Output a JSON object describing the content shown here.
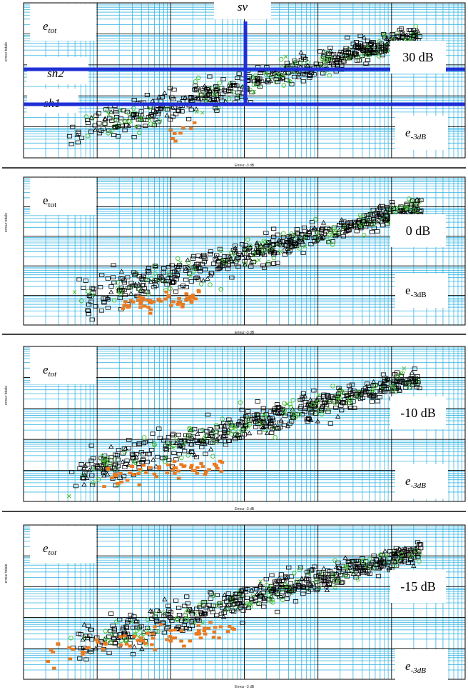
{
  "colors": {
    "major_grid": "#1aa7d9",
    "minor_grid": "#36b4e3",
    "threshold_lines": "#1f2fd6",
    "square_marker": "#000000",
    "triangle_marker": "#000000",
    "circle_marker": "#3fbf2f",
    "x_marker": "#3fbf2f",
    "filled_square_marker": "#e87a22"
  },
  "chart_data": [
    {
      "type": "scatter",
      "x_scale": "log",
      "y_scale": "log",
      "xlabel": "Erreur -3 dB",
      "ylabel": "erreur totale",
      "grid": true,
      "labels": {
        "corner_label": {
          "main": "e",
          "sub": "tot",
          "italic": true
        },
        "snr_label": "30 dB",
        "bottom_label": {
          "main": "e",
          "sub": "-3dB",
          "italic": true
        }
      },
      "threshold_lines": [
        {
          "name": "sv",
          "orientation": "vertical",
          "label": "sv"
        },
        {
          "name": "sh2",
          "orientation": "horizontal",
          "label": "sh2"
        },
        {
          "name": "sh1",
          "orientation": "horizontal",
          "label": "sh1"
        }
      ]
    },
    {
      "type": "scatter",
      "x_scale": "log",
      "y_scale": "log",
      "xlabel": "Erreur -3 dB",
      "ylabel": "erreur totale",
      "grid": true,
      "labels": {
        "corner_label": {
          "main": "e",
          "sub": "tot",
          "italic": false
        },
        "snr_label": "0 dB",
        "bottom_label": {
          "main": "e",
          "sub": "-3dB",
          "italic": false
        }
      }
    },
    {
      "type": "scatter",
      "x_scale": "log",
      "y_scale": "log",
      "xlabel": "Erreur -3 dB",
      "ylabel": "erreur totale",
      "grid": true,
      "labels": {
        "corner_label": {
          "main": "e",
          "sub": "tot",
          "italic": true
        },
        "snr_label": "-10 dB",
        "bottom_label": {
          "main": "e",
          "sub": "-3dB",
          "italic": true
        }
      }
    },
    {
      "type": "scatter",
      "x_scale": "log",
      "y_scale": "log",
      "xlabel": "Erreur -3 dB",
      "ylabel": "erreur totale",
      "grid": true,
      "labels": {
        "corner_label": {
          "main": "e",
          "sub": "tot",
          "italic": true
        },
        "snr_label": "-15 dB",
        "bottom_label": {
          "main": "e",
          "sub": "-3dB",
          "italic": true
        }
      }
    }
  ]
}
